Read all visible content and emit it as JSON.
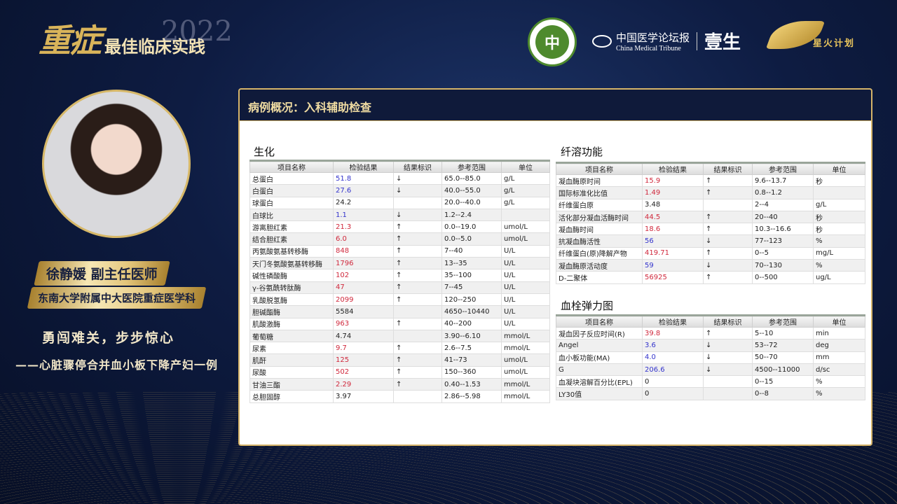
{
  "brand": {
    "char1": "重",
    "char2": "症",
    "year": "2022",
    "subtitle": "最佳临床实践"
  },
  "logos": {
    "hospital": "中",
    "cmt_cn": "中国医学论坛报",
    "cmt_en": "China Medical Tribune",
    "yisheng": "壹生",
    "spark": "星火计划"
  },
  "speaker": {
    "name_title": "徐静媛 副主任医师",
    "affiliation": "东南大学附属中大医院重症医学科"
  },
  "talk": {
    "title": "勇闯难关，步步惊心",
    "subtitle": "——心脏骤停合并血小板下降产妇一例"
  },
  "panel": {
    "title": "病例概况：入科辅助检查"
  },
  "columns": [
    "项目名称",
    "检验结果",
    "结果标识",
    "参考范围",
    "单位"
  ],
  "sections": [
    {
      "title": "生化",
      "rows": [
        [
          "总蛋白",
          "51.8",
          "↓",
          "65.0--85.0",
          "g/L"
        ],
        [
          "白蛋白",
          "27.6",
          "↓",
          "40.0--55.0",
          "g/L"
        ],
        [
          "球蛋白",
          "24.2",
          "",
          "20.0--40.0",
          "g/L"
        ],
        [
          "白球比",
          "1.1",
          "↓",
          "1.2--2.4",
          ""
        ],
        [
          "游离胆红素",
          "21.3",
          "↑",
          "0.0--19.0",
          "umol/L"
        ],
        [
          "结合胆红素",
          "6.0",
          "↑",
          "0.0--5.0",
          "umol/L"
        ],
        [
          "丙氨酸氨基转移酶",
          "848",
          "↑",
          "7--40",
          "U/L"
        ],
        [
          "天门冬氨酸氨基转移酶",
          "1796",
          "↑",
          "13--35",
          "U/L"
        ],
        [
          "碱性磷酸酶",
          "102",
          "↑",
          "35--100",
          "U/L"
        ],
        [
          "γ-谷氨酰转肽酶",
          "47",
          "↑",
          "7--45",
          "U/L"
        ],
        [
          "乳酸脱氢酶",
          "2099",
          "↑",
          "120--250",
          "U/L"
        ],
        [
          "胆碱酯酶",
          "5584",
          "",
          "4650--10440",
          "U/L"
        ],
        [
          "肌酸激酶",
          "963",
          "↑",
          "40--200",
          "U/L"
        ],
        [
          "葡萄糖",
          "4.74",
          "",
          "3.90--6.10",
          "mmol/L"
        ],
        [
          "尿素",
          "9.7",
          "↑",
          "2.6--7.5",
          "mmol/L"
        ],
        [
          "肌酐",
          "125",
          "↑",
          "41--73",
          "umol/L"
        ],
        [
          "尿酸",
          "502",
          "↑",
          "150--360",
          "umol/L"
        ],
        [
          "甘油三酯",
          "2.29",
          "↑",
          "0.40--1.53",
          "mmol/L"
        ],
        [
          "总胆固醇",
          "3.97",
          "",
          "2.86--5.98",
          "mmol/L"
        ]
      ]
    },
    {
      "title": "纤溶功能",
      "rows": [
        [
          "凝血酶原时间",
          "15.9",
          "↑",
          "9.6--13.7",
          "秒"
        ],
        [
          "国际标准化比值",
          "1.49",
          "↑",
          "0.8--1.2",
          ""
        ],
        [
          "纤维蛋白原",
          "3.48",
          "",
          "2--4",
          "g/L"
        ],
        [
          "活化部分凝血活酶时间",
          "44.5",
          "↑",
          "20--40",
          "秒"
        ],
        [
          "凝血酶时间",
          "18.6",
          "↑",
          "10.3--16.6",
          "秒"
        ],
        [
          "抗凝血酶活性",
          "56",
          "↓",
          "77--123",
          "%"
        ],
        [
          "纤维蛋白(原)降解产物",
          "419.71",
          "↑",
          "0--5",
          "mg/L"
        ],
        [
          "凝血酶原活动度",
          "59",
          "↓",
          "70--130",
          "%"
        ],
        [
          "D-二聚体",
          "56925",
          "↑",
          "0--500",
          "ug/L"
        ]
      ]
    },
    {
      "title": "血栓弹力图",
      "rows": [
        [
          "凝血因子反应时间(R)",
          "39.8",
          "↑",
          "5--10",
          "min"
        ],
        [
          "Angel",
          "3.6",
          "↓",
          "53--72",
          "deg"
        ],
        [
          "血小板功能(MA)",
          "4.0",
          "↓",
          "50--70",
          "mm"
        ],
        [
          "G",
          "206.6",
          "↓",
          "4500--11000",
          "d/sc"
        ],
        [
          "血凝块溶解百分比(EPL)",
          "0",
          "",
          "0--15",
          "%"
        ],
        [
          "LY30值",
          "0",
          "",
          "0--8",
          "%"
        ]
      ]
    }
  ],
  "colors": {
    "high": "#d0283c",
    "low": "#3333cc",
    "gold": "#d6b469",
    "navy": "#0f1a3a"
  }
}
